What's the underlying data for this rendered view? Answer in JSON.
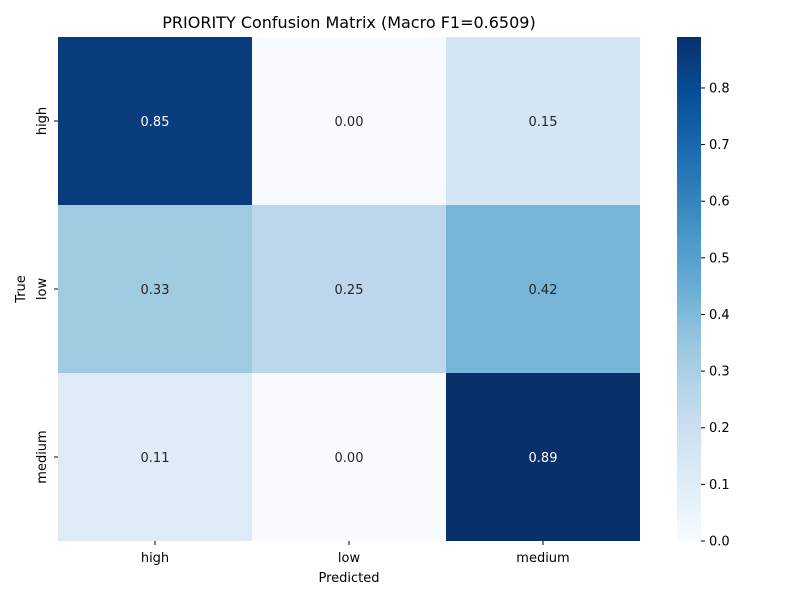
{
  "chart_data": {
    "type": "heatmap",
    "title": "PRIORITY Confusion Matrix (Macro F1=0.6509)",
    "xlabel": "Predicted",
    "ylabel": "True",
    "x_categories": [
      "high",
      "low",
      "medium"
    ],
    "y_categories": [
      "high",
      "low",
      "medium"
    ],
    "values": [
      [
        0.85,
        0.0,
        0.15
      ],
      [
        0.33,
        0.25,
        0.42
      ],
      [
        0.11,
        0.0,
        0.89
      ]
    ],
    "value_format": "2dp",
    "colormap": "Blues",
    "color_range": [
      0.0,
      0.89
    ],
    "colorbar": {
      "ticks": [
        0.0,
        0.1,
        0.2,
        0.3,
        0.4,
        0.5,
        0.6,
        0.7,
        0.8
      ],
      "tick_labels": [
        "0.0",
        "0.1",
        "0.2",
        "0.3",
        "0.4",
        "0.5",
        "0.6",
        "0.7",
        "0.8"
      ]
    }
  }
}
